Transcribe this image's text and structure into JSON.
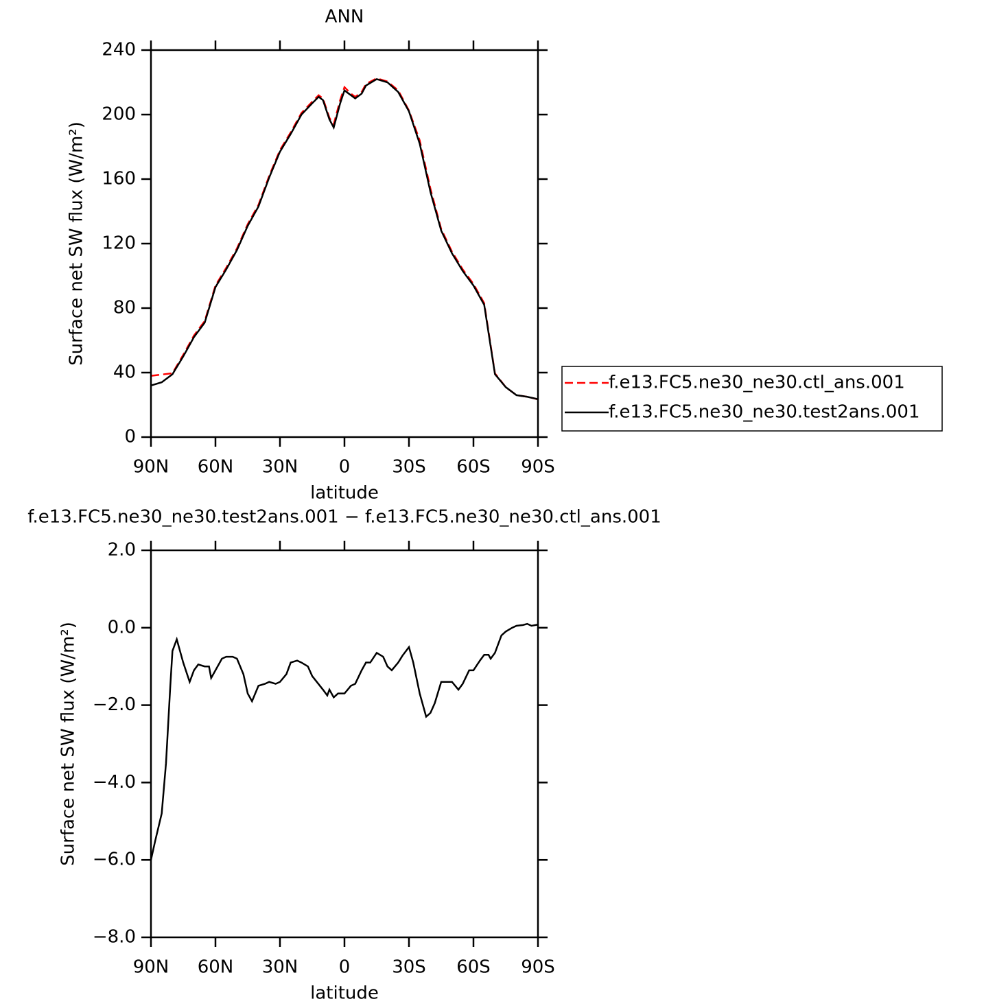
{
  "chart_data": [
    {
      "type": "line",
      "title": "ANN",
      "x_label": "latitude",
      "y_label": "Surface net SW flux (W/m²)",
      "x": [
        90,
        85,
        80,
        75,
        70,
        65,
        60,
        55,
        50,
        45,
        40,
        35,
        30,
        25,
        20,
        15,
        12,
        10,
        7,
        5,
        2,
        0,
        -3,
        -5,
        -8,
        -10,
        -15,
        -20,
        -25,
        -30,
        -35,
        -40,
        -45,
        -50,
        -55,
        -60,
        -65,
        -70,
        -75,
        -80,
        -85,
        -90
      ],
      "series": [
        {
          "name": "f.e13.FC5.ne30_ne30.ctl_ans.001",
          "color": "#ff0000",
          "dash": "dashed",
          "values": [
            38,
            38.8,
            39.6,
            51,
            63,
            72,
            94,
            105,
            117,
            132,
            144,
            162,
            178,
            189,
            201,
            208,
            212,
            210,
            198,
            194,
            209,
            217,
            213,
            211,
            214,
            219,
            222.5,
            220.5,
            215,
            202.5,
            184,
            154,
            129,
            115,
            104,
            95,
            83,
            39.5,
            31,
            26,
            25,
            23.4
          ]
        },
        {
          "name": "f.e13.FC5.ne30_ne30.test2ans.001",
          "color": "#000000",
          "dash": "solid",
          "values": [
            32,
            34,
            39,
            50,
            62,
            71,
            93,
            104,
            116,
            131,
            143,
            161,
            177,
            188,
            200,
            207,
            211,
            209,
            197,
            192,
            207,
            215,
            212,
            210,
            213,
            218,
            222,
            220,
            214,
            202,
            182,
            152,
            128,
            114,
            103,
            94,
            82,
            39,
            31,
            26,
            25,
            23.5
          ]
        }
      ],
      "xlim": [
        90,
        -90
      ],
      "xticks": [
        {
          "value": 90,
          "label": "90N"
        },
        {
          "value": 60,
          "label": "60N"
        },
        {
          "value": 30,
          "label": "30N"
        },
        0,
        {
          "value": -30,
          "label": "30S"
        },
        {
          "value": -60,
          "label": "60S"
        },
        {
          "value": -90,
          "label": "90S"
        }
      ],
      "ylim": [
        0,
        240
      ],
      "yticks": [
        0,
        40,
        80,
        120,
        160,
        200,
        240
      ],
      "legend": "right"
    },
    {
      "type": "line",
      "title": "f.e13.FC5.ne30_ne30.test2ans.001 − f.e13.FC5.ne30_ne30.ctl_ans.001",
      "x_label": "latitude",
      "y_label": "Surface net SW flux (W/m²)",
      "x": [
        90,
        88,
        85,
        83,
        81,
        80,
        78,
        75,
        72,
        70,
        68,
        65,
        63,
        62,
        60,
        57,
        55,
        52,
        50,
        47,
        45,
        43,
        40,
        37,
        35,
        32,
        30,
        27,
        25,
        22,
        20,
        17,
        15,
        10,
        8,
        7,
        5,
        3,
        0,
        -3,
        -5,
        -8,
        -10,
        -12,
        -15,
        -18,
        -20,
        -22,
        -25,
        -27,
        -30,
        -32,
        -35,
        -38,
        -40,
        -42,
        -45,
        -48,
        -50,
        -53,
        -55,
        -58,
        -60,
        -63,
        -65,
        -67,
        -68,
        -70,
        -73,
        -75,
        -78,
        -80,
        -83,
        -85,
        -87,
        -90
      ],
      "color": "#000000",
      "values": [
        -6.0,
        -5.5,
        -4.8,
        -3.5,
        -1.5,
        -0.6,
        -0.3,
        -0.9,
        -1.4,
        -1.1,
        -0.95,
        -1.0,
        -1.0,
        -1.3,
        -1.1,
        -0.8,
        -0.75,
        -0.75,
        -0.8,
        -1.2,
        -1.7,
        -1.9,
        -1.5,
        -1.45,
        -1.4,
        -1.45,
        -1.4,
        -1.2,
        -0.9,
        -0.85,
        -0.9,
        -1.0,
        -1.25,
        -1.6,
        -1.75,
        -1.6,
        -1.8,
        -1.7,
        -1.7,
        -1.5,
        -1.45,
        -1.1,
        -0.9,
        -0.9,
        -0.65,
        -0.75,
        -1.0,
        -1.1,
        -0.9,
        -0.72,
        -0.5,
        -0.9,
        -1.7,
        -2.3,
        -2.2,
        -1.95,
        -1.4,
        -1.4,
        -1.4,
        -1.6,
        -1.45,
        -1.1,
        -1.1,
        -0.85,
        -0.7,
        -0.7,
        -0.8,
        -0.65,
        -0.2,
        -0.1,
        0.0,
        0.05,
        0.07,
        0.1,
        0.05,
        0.08
      ],
      "xlim": [
        90,
        -90
      ],
      "xticks": [
        {
          "value": 90,
          "label": "90N"
        },
        {
          "value": 60,
          "label": "60N"
        },
        {
          "value": 30,
          "label": "30N"
        },
        0,
        {
          "value": -30,
          "label": "30S"
        },
        {
          "value": -60,
          "label": "60S"
        },
        {
          "value": -90,
          "label": "90S"
        }
      ],
      "ylim": [
        -8,
        2
      ],
      "yticks": [
        {
          "value": -8,
          "label": "−8.0"
        },
        {
          "value": -6,
          "label": "−6.0"
        },
        {
          "value": -4,
          "label": "−4.0"
        },
        {
          "value": -2,
          "label": "−2.0"
        },
        {
          "value": 0,
          "label": "0.0"
        },
        {
          "value": 2,
          "label": "2.0"
        }
      ]
    }
  ]
}
